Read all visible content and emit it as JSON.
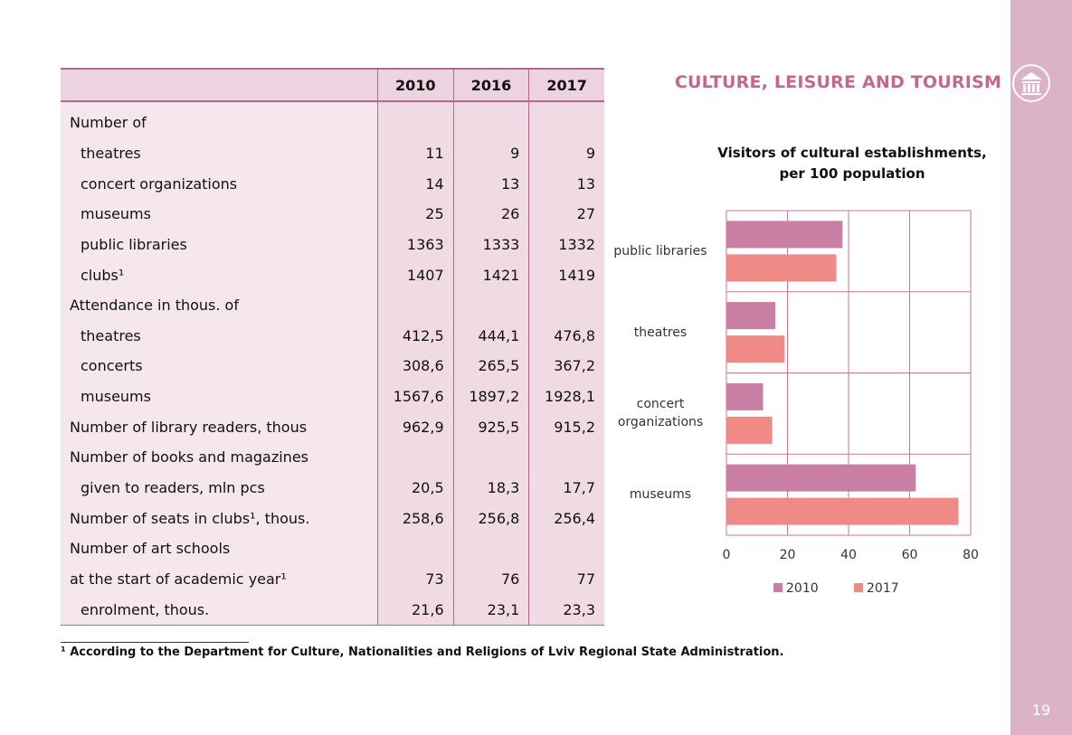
{
  "page_number": "19",
  "section_title": "CULTURE, LEISURE AND TOURISM",
  "table": {
    "columns": [
      "2010",
      "2016",
      "2017"
    ],
    "rows": [
      {
        "label": "Number of"
      },
      {
        "label": "theatres",
        "indent": true,
        "values": [
          "11",
          "9",
          "9"
        ]
      },
      {
        "label": "concert organizations",
        "indent": true,
        "values": [
          "14",
          "13",
          "13"
        ]
      },
      {
        "label": "museums",
        "indent": true,
        "values": [
          "25",
          "26",
          "27"
        ]
      },
      {
        "label": "public libraries",
        "indent": true,
        "values": [
          "1363",
          "1333",
          "1332"
        ]
      },
      {
        "label": "clubs¹",
        "indent": true,
        "values": [
          "1407",
          "1421",
          "1419"
        ]
      },
      {
        "label": "Attendance in thous. of"
      },
      {
        "label": "theatres",
        "indent": true,
        "values": [
          "412,5",
          "444,1",
          "476,8"
        ]
      },
      {
        "label": "concerts",
        "indent": true,
        "values": [
          "308,6",
          "265,5",
          "367,2"
        ]
      },
      {
        "label": "museums",
        "indent": true,
        "values": [
          "1567,6",
          "1897,2",
          "1928,1"
        ]
      },
      {
        "label": "Number of library readers, thous",
        "values": [
          "962,9",
          "925,5",
          "915,2"
        ]
      },
      {
        "label": "Number of books and magazines"
      },
      {
        "label": "given to readers, mln pcs",
        "indent": true,
        "values": [
          "20,5",
          "18,3",
          "17,7"
        ]
      },
      {
        "label": "Number of  seats in clubs¹, thous.",
        "values": [
          "258,6",
          "256,8",
          "256,4"
        ]
      },
      {
        "label": "Number of art schools"
      },
      {
        "label": "at the start of academic year¹",
        "values": [
          "73",
          "76",
          "77"
        ]
      },
      {
        "label": "enrolment, thous.",
        "indent": true,
        "values": [
          "21,6",
          "23,1",
          "23,3"
        ]
      }
    ]
  },
  "footnote": "¹ According to the Department for Culture, Nationalities and Religions of Lviv Regional State Administration.",
  "chart_data": {
    "type": "barh",
    "title": [
      "Visitors of cultural establishments,",
      "per 100 population"
    ],
    "categories": [
      "public libraries",
      "theatres",
      "concert organizations",
      "museums"
    ],
    "series": [
      {
        "name": "2010",
        "color": "#c97fa3",
        "values": [
          38,
          16,
          12,
          62
        ]
      },
      {
        "name": "2017",
        "color": "#ef8a87",
        "values": [
          36,
          19,
          15,
          76
        ]
      }
    ],
    "xlim": [
      0,
      80
    ],
    "xticks": [
      0,
      20,
      40,
      60,
      80
    ],
    "grid": true,
    "legend": "bottom"
  }
}
